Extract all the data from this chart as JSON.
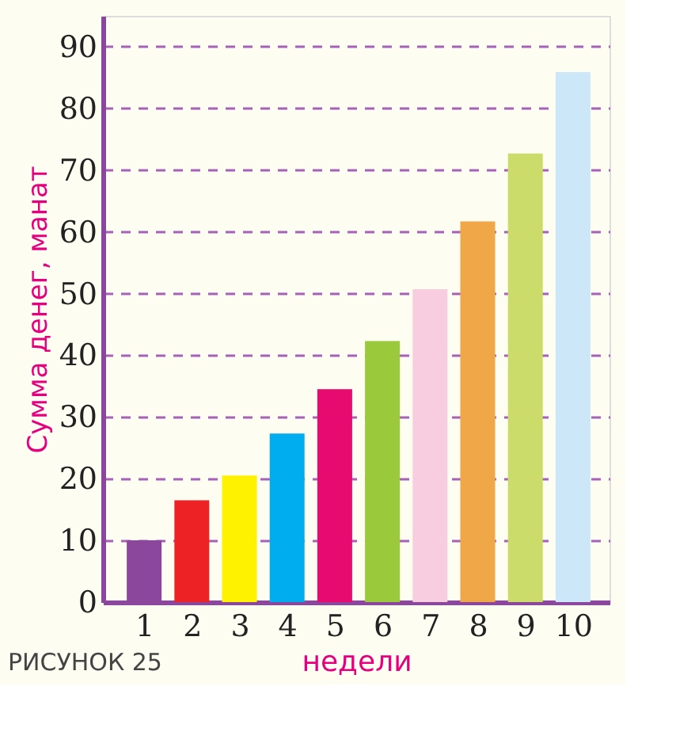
{
  "chart_data": {
    "type": "bar",
    "xlabel": "недели",
    "ylabel": "Сумма денег, манат",
    "categories": [
      "1",
      "2",
      "3",
      "4",
      "5",
      "6",
      "7",
      "8",
      "9",
      "10"
    ],
    "values": [
      10,
      16.5,
      20.5,
      27.3,
      34.5,
      42.3,
      50.7,
      61.7,
      72.7,
      85.9
    ],
    "colors": [
      "#8b479c",
      "#ec2224",
      "#fff200",
      "#00aeef",
      "#e80b6f",
      "#9bc93c",
      "#f8cde0",
      "#f0a748",
      "#cbdc6a",
      "#cce8f8"
    ],
    "ylim": [
      0,
      95
    ],
    "yticks": [
      0,
      10,
      20,
      30,
      40,
      50,
      60,
      70,
      80,
      90
    ],
    "grid": "y",
    "annotations": [
      "РИСУНОК 25"
    ]
  }
}
